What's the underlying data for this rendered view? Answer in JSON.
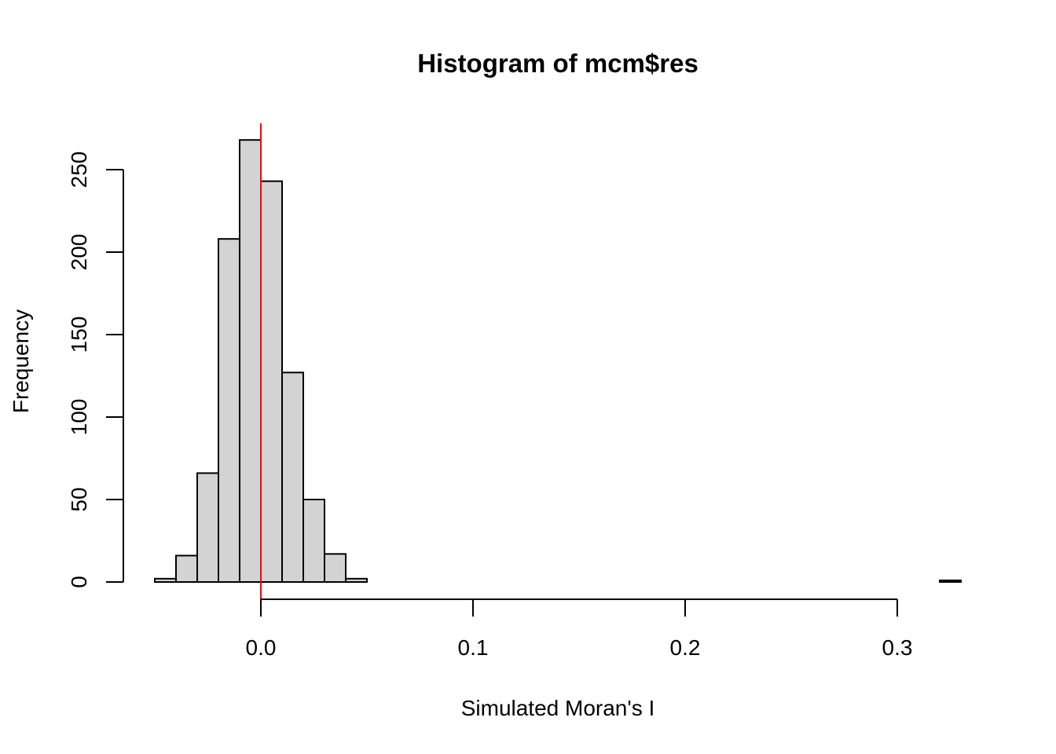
{
  "chart_data": {
    "type": "bar",
    "title": "Histogram of mcm$res",
    "xlabel": "Simulated Moran's I",
    "ylabel": "Frequency",
    "bin_width": 0.01,
    "bins": [
      {
        "x0": -0.05,
        "x1": -0.04,
        "count": 2
      },
      {
        "x0": -0.04,
        "x1": -0.03,
        "count": 16
      },
      {
        "x0": -0.03,
        "x1": -0.02,
        "count": 66
      },
      {
        "x0": -0.02,
        "x1": -0.01,
        "count": 208
      },
      {
        "x0": -0.01,
        "x1": 0.0,
        "count": 268
      },
      {
        "x0": 0.0,
        "x1": 0.01,
        "count": 243
      },
      {
        "x0": 0.01,
        "x1": 0.02,
        "count": 127
      },
      {
        "x0": 0.02,
        "x1": 0.03,
        "count": 50
      },
      {
        "x0": 0.03,
        "x1": 0.04,
        "count": 17
      },
      {
        "x0": 0.04,
        "x1": 0.05,
        "count": 2
      },
      {
        "x0": 0.05,
        "x1": 0.06,
        "count": 0
      },
      {
        "x0": 0.06,
        "x1": 0.07,
        "count": 0
      },
      {
        "x0": 0.07,
        "x1": 0.08,
        "count": 0
      },
      {
        "x0": 0.08,
        "x1": 0.09,
        "count": 0
      },
      {
        "x0": 0.09,
        "x1": 0.1,
        "count": 0
      },
      {
        "x0": 0.1,
        "x1": 0.11,
        "count": 0
      },
      {
        "x0": 0.11,
        "x1": 0.12,
        "count": 0
      },
      {
        "x0": 0.12,
        "x1": 0.13,
        "count": 0
      },
      {
        "x0": 0.13,
        "x1": 0.14,
        "count": 0
      },
      {
        "x0": 0.14,
        "x1": 0.15,
        "count": 0
      },
      {
        "x0": 0.15,
        "x1": 0.16,
        "count": 0
      },
      {
        "x0": 0.16,
        "x1": 0.17,
        "count": 0
      },
      {
        "x0": 0.17,
        "x1": 0.18,
        "count": 0
      },
      {
        "x0": 0.18,
        "x1": 0.19,
        "count": 0
      },
      {
        "x0": 0.19,
        "x1": 0.2,
        "count": 0
      },
      {
        "x0": 0.2,
        "x1": 0.21,
        "count": 0
      },
      {
        "x0": 0.21,
        "x1": 0.22,
        "count": 0
      },
      {
        "x0": 0.22,
        "x1": 0.23,
        "count": 0
      },
      {
        "x0": 0.23,
        "x1": 0.24,
        "count": 0
      },
      {
        "x0": 0.24,
        "x1": 0.25,
        "count": 0
      },
      {
        "x0": 0.25,
        "x1": 0.26,
        "count": 0
      },
      {
        "x0": 0.26,
        "x1": 0.27,
        "count": 0
      },
      {
        "x0": 0.27,
        "x1": 0.28,
        "count": 0
      },
      {
        "x0": 0.28,
        "x1": 0.29,
        "count": 0
      },
      {
        "x0": 0.29,
        "x1": 0.3,
        "count": 0
      },
      {
        "x0": 0.3,
        "x1": 0.31,
        "count": 0
      },
      {
        "x0": 0.31,
        "x1": 0.32,
        "count": 0
      },
      {
        "x0": 0.32,
        "x1": 0.33,
        "count": 1
      }
    ],
    "xlim": [
      -0.05,
      0.33
    ],
    "ylim": [
      0,
      270
    ],
    "x_ticks": [
      {
        "value": 0.0,
        "label": "0.0"
      },
      {
        "value": 0.1,
        "label": "0.1"
      },
      {
        "value": 0.2,
        "label": "0.2"
      },
      {
        "value": 0.3,
        "label": "0.3"
      }
    ],
    "y_ticks": [
      {
        "value": 0,
        "label": "0"
      },
      {
        "value": 50,
        "label": "50"
      },
      {
        "value": 100,
        "label": "100"
      },
      {
        "value": 150,
        "label": "150"
      },
      {
        "value": 200,
        "label": "200"
      },
      {
        "value": 250,
        "label": "250"
      }
    ],
    "reference_line": {
      "x": 0.0,
      "color": "#ff0000"
    },
    "bar_fill": "#d3d3d3",
    "bar_stroke": "#000000",
    "grid": false,
    "legend": "none"
  }
}
